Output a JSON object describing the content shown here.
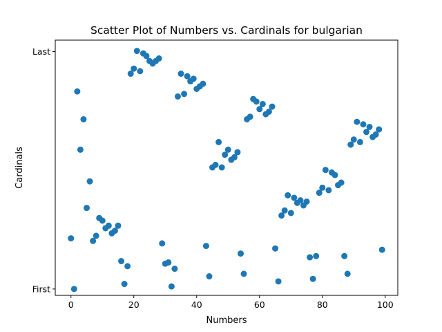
{
  "chart_data": {
    "type": "scatter",
    "title": "Scatter Plot of Numbers vs. Cardinals for bulgarian",
    "xlabel": "Numbers",
    "ylabel": "Cardinals",
    "xlim": [
      -5,
      104
    ],
    "ylim": [
      -0.025,
      0.9825
    ],
    "xticks": [
      0,
      20,
      40,
      60,
      80,
      100
    ],
    "yticks": [
      {
        "value": 0,
        "label": "First"
      },
      {
        "value": 0.9375,
        "label": "Last"
      }
    ],
    "grid": false,
    "legend": false,
    "marker_color": "#1f77b4",
    "x": [
      0,
      1,
      2,
      3,
      4,
      5,
      6,
      7,
      8,
      9,
      10,
      11,
      12,
      13,
      14,
      15,
      16,
      17,
      18,
      19,
      20,
      21,
      22,
      23,
      24,
      25,
      26,
      27,
      28,
      29,
      30,
      31,
      32,
      33,
      34,
      35,
      36,
      37,
      38,
      39,
      40,
      41,
      42,
      43,
      44,
      45,
      46,
      47,
      48,
      49,
      50,
      51,
      52,
      53,
      54,
      55,
      56,
      57,
      58,
      59,
      60,
      61,
      62,
      63,
      64,
      65,
      66,
      67,
      68,
      69,
      70,
      71,
      72,
      73,
      74,
      75,
      76,
      77,
      78,
      79,
      80,
      81,
      82,
      83,
      84,
      85,
      86,
      87,
      88,
      89,
      90,
      91,
      92,
      93,
      94,
      95,
      96,
      97,
      98,
      99
    ],
    "y": [
      0.2,
      0.0,
      0.78,
      0.55,
      0.67,
      0.32,
      0.425,
      0.19,
      0.21,
      0.28,
      0.27,
      0.24,
      0.25,
      0.22,
      0.23,
      0.25,
      0.11,
      0.02,
      0.09,
      0.85,
      0.87,
      0.94,
      0.86,
      0.93,
      0.92,
      0.9,
      0.89,
      0.9,
      0.91,
      0.18,
      0.1,
      0.105,
      0.01,
      0.08,
      0.76,
      0.85,
      0.77,
      0.84,
      0.82,
      0.83,
      0.79,
      0.8,
      0.81,
      0.17,
      0.05,
      0.48,
      0.49,
      0.58,
      0.48,
      0.53,
      0.55,
      0.51,
      0.52,
      0.54,
      0.14,
      0.06,
      0.67,
      0.68,
      0.75,
      0.74,
      0.71,
      0.73,
      0.69,
      0.7,
      0.72,
      0.16,
      0.03,
      0.29,
      0.31,
      0.37,
      0.3,
      0.36,
      0.34,
      0.35,
      0.33,
      0.345,
      0.125,
      0.04,
      0.13,
      0.38,
      0.4,
      0.47,
      0.39,
      0.46,
      0.45,
      0.41,
      0.42,
      0.13,
      0.06,
      0.57,
      0.59,
      0.66,
      0.58,
      0.65,
      0.62,
      0.64,
      0.6,
      0.61,
      0.63,
      0.155
    ]
  }
}
